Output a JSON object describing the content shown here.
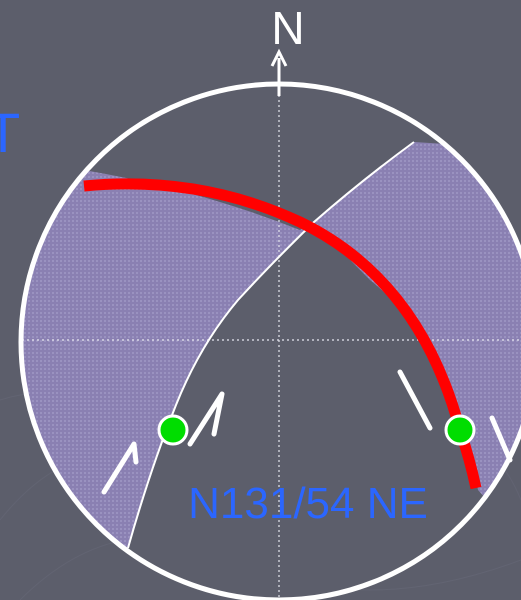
{
  "diagram": {
    "north_label": "N",
    "partial_left_label": "T",
    "plane_label": "N131/54 NE",
    "colors": {
      "background": "#5c5e6b",
      "net_fill": "#5c5e6b",
      "shaded_region": "#8c82b4",
      "circle_outline": "#ffffff",
      "great_circle": "#ff0000",
      "pole_markers": "#00dd00",
      "label_blue": "#2b66ff",
      "north_text": "#ffffff"
    },
    "icons": [
      "north-arrow-icon",
      "slip-arrow-icon"
    ]
  }
}
